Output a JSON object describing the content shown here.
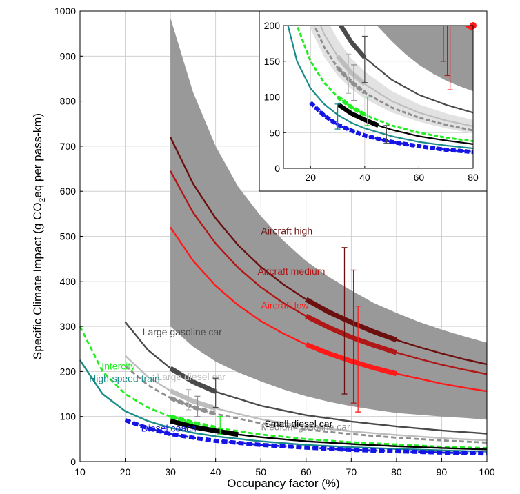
{
  "chart_data": [
    {
      "type": "line",
      "xlabel": "Occupancy factor (%)",
      "ylabel": "Specific Climate Impact (g CO2eq per pass-km)",
      "ylabel_parts": {
        "pre": "Specific Climate Impact (g CO",
        "sub": "2",
        "post": "eq per pass-km)"
      },
      "xlim": [
        10,
        100
      ],
      "ylim": [
        0,
        1000
      ],
      "xticks": [
        10,
        20,
        30,
        40,
        50,
        60,
        70,
        80,
        90,
        100
      ],
      "yticks": [
        0,
        100,
        200,
        300,
        400,
        500,
        600,
        700,
        800,
        900,
        1000
      ],
      "grid": true,
      "legend": "inline labels",
      "band": {
        "color": "#999999",
        "x": [
          30,
          35,
          40,
          45,
          50,
          55,
          60,
          65,
          70,
          75,
          80,
          85,
          90,
          95,
          100
        ],
        "upper": [
          985,
          820,
          700,
          610,
          545,
          490,
          445,
          410,
          380,
          352,
          330,
          310,
          293,
          278,
          264
        ],
        "lower": [
          300,
          255,
          222,
          198,
          178,
          160,
          145,
          133,
          123,
          115,
          108,
          104,
          100,
          97,
          93
        ]
      },
      "series": [
        {
          "name": "Aircraft high",
          "color": "#6b0f0f",
          "dash": false,
          "x": [
            30,
            35,
            40,
            45,
            50,
            55,
            60,
            65,
            70,
            75,
            80,
            85,
            90,
            95,
            100
          ],
          "values": [
            720,
            617,
            540,
            480,
            432,
            393,
            360,
            332,
            309,
            288,
            270,
            254,
            240,
            227,
            216
          ],
          "thick_range": [
            60,
            80
          ],
          "label_pos": "above"
        },
        {
          "name": "Aircraft medium",
          "color": "#b01818",
          "dash": false,
          "x": [
            30,
            35,
            40,
            45,
            50,
            55,
            60,
            65,
            70,
            75,
            80,
            85,
            90,
            95,
            100
          ],
          "values": [
            645,
            553,
            484,
            430,
            387,
            352,
            323,
            298,
            276,
            258,
            242,
            228,
            215,
            204,
            194
          ],
          "thick_range": [
            60,
            80
          ],
          "label_pos": "above"
        },
        {
          "name": "Aircraft low",
          "color": "#ff1a1a",
          "dash": false,
          "x": [
            30,
            35,
            40,
            45,
            50,
            55,
            60,
            65,
            70,
            75,
            80,
            85,
            90,
            95,
            100
          ],
          "values": [
            520,
            446,
            390,
            347,
            312,
            284,
            260,
            240,
            223,
            208,
            195,
            184,
            173,
            164,
            156
          ],
          "thick_range": [
            60,
            80
          ],
          "label_pos": "above"
        },
        {
          "name": "Large gasoline car",
          "color": "#4a4a4a",
          "dash": false,
          "x": [
            20,
            25,
            30,
            35,
            40,
            50,
            60,
            70,
            80,
            90,
            100
          ],
          "values": [
            310,
            248,
            207,
            177,
            155,
            124,
            103,
            89,
            78,
            69,
            62
          ],
          "thick_range": [
            30,
            40
          ],
          "label_pos": "right-above"
        },
        {
          "name": "Intercity",
          "color": "#22ee22",
          "dash": true,
          "x": [
            10,
            15,
            20,
            25,
            30,
            35,
            40,
            50,
            60,
            70,
            80,
            90,
            100
          ],
          "values": [
            300,
            200,
            150,
            120,
            100,
            86,
            75,
            60,
            50,
            43,
            38,
            33,
            30
          ],
          "thick_range": [
            30,
            40
          ],
          "label_pos": "above"
        },
        {
          "name": "Large diesel car",
          "color": "#bdbdbd",
          "dash": false,
          "x": [
            20,
            25,
            30,
            35,
            40,
            50,
            60,
            70,
            80,
            90,
            100
          ],
          "values": [
            235,
            188,
            157,
            134,
            118,
            94,
            78,
            67,
            59,
            52,
            47
          ],
          "thick_range": [
            30,
            40
          ],
          "label_pos": "right-above"
        },
        {
          "name": "Medium gasoline car",
          "color": "#8f8f8f",
          "dash": true,
          "x": [
            20,
            25,
            30,
            35,
            40,
            50,
            60,
            70,
            80,
            90,
            100
          ],
          "values": [
            212,
            170,
            141,
            121,
            106,
            85,
            71,
            61,
            53,
            47,
            42
          ],
          "thick_range": [
            30,
            40
          ],
          "label_pos": "right"
        },
        {
          "name": "Small diesel car",
          "color": "#000000",
          "dash": false,
          "x": [
            30,
            35,
            40,
            45,
            50,
            60,
            70,
            80,
            90,
            100
          ],
          "values": [
            90,
            77,
            68,
            60,
            54,
            45,
            39,
            34,
            30,
            27
          ],
          "thick_range": [
            30,
            45
          ],
          "label_pos": "right"
        },
        {
          "name": "High-speed train",
          "color": "#1a8b8b",
          "dash": false,
          "x": [
            10,
            15,
            20,
            25,
            30,
            35,
            40,
            50,
            60,
            70,
            80,
            90,
            100
          ],
          "values": [
            225,
            150,
            112,
            90,
            75,
            64,
            56,
            45,
            37,
            32,
            28,
            25,
            22
          ],
          "thick_range": null,
          "label_pos": "below"
        },
        {
          "name": "Diesel coach",
          "color": "#1414e6",
          "dash": true,
          "x": [
            20,
            25,
            30,
            35,
            40,
            50,
            60,
            70,
            80,
            90,
            100
          ],
          "values": [
            92,
            74,
            61,
            53,
            46,
            37,
            31,
            26,
            23,
            20,
            18
          ],
          "thick_range": [
            20,
            100
          ],
          "label_pos": "below"
        }
      ],
      "errorbars": [
        {
          "x": 68.5,
          "low": 150,
          "high": 475,
          "color": "#6b0f0f"
        },
        {
          "x": 70.5,
          "low": 130,
          "high": 425,
          "color": "#b01818"
        },
        {
          "x": 71.5,
          "low": 110,
          "high": 345,
          "color": "#ff1a1a"
        },
        {
          "x": 40,
          "low": 120,
          "high": 185,
          "color": "#4a4a4a"
        },
        {
          "x": 36,
          "low": 100,
          "high": 145,
          "color": "#8f8f8f"
        },
        {
          "x": 34,
          "low": 115,
          "high": 160,
          "color": "#bdbdbd"
        },
        {
          "x": 41,
          "low": 60,
          "high": 100,
          "color": "#22ee22"
        }
      ]
    },
    {
      "type": "line",
      "inset": true,
      "xlim": [
        10,
        80
      ],
      "ylim": [
        0,
        200
      ],
      "xticks": [
        20,
        40,
        60,
        80
      ],
      "yticks": [
        0,
        50,
        100,
        150,
        200
      ],
      "grid": true,
      "errorbars": [
        {
          "x": 69,
          "low": 150,
          "high": 200,
          "color": "#6b0f0f"
        },
        {
          "x": 70.5,
          "low": 130,
          "high": 200,
          "color": "#b01818"
        },
        {
          "x": 71.5,
          "low": 110,
          "high": 200,
          "color": "#ff1a1a"
        },
        {
          "x": 40,
          "low": 120,
          "high": 185,
          "color": "#4a4a4a"
        },
        {
          "x": 36,
          "low": 95,
          "high": 145,
          "color": "#8f8f8f"
        },
        {
          "x": 34,
          "low": 105,
          "high": 160,
          "color": "#bdbdbd"
        },
        {
          "x": 41,
          "low": 60,
          "high": 100,
          "color": "#22ee22"
        },
        {
          "x": 30,
          "low": 55,
          "high": 90,
          "color": "#1a8b8b"
        },
        {
          "x": 48,
          "low": 35,
          "high": 60,
          "color": "#4a4a4a"
        }
      ],
      "markers": [
        {
          "x": 80,
          "y": 200,
          "color": "#ff1a1a"
        }
      ]
    }
  ]
}
